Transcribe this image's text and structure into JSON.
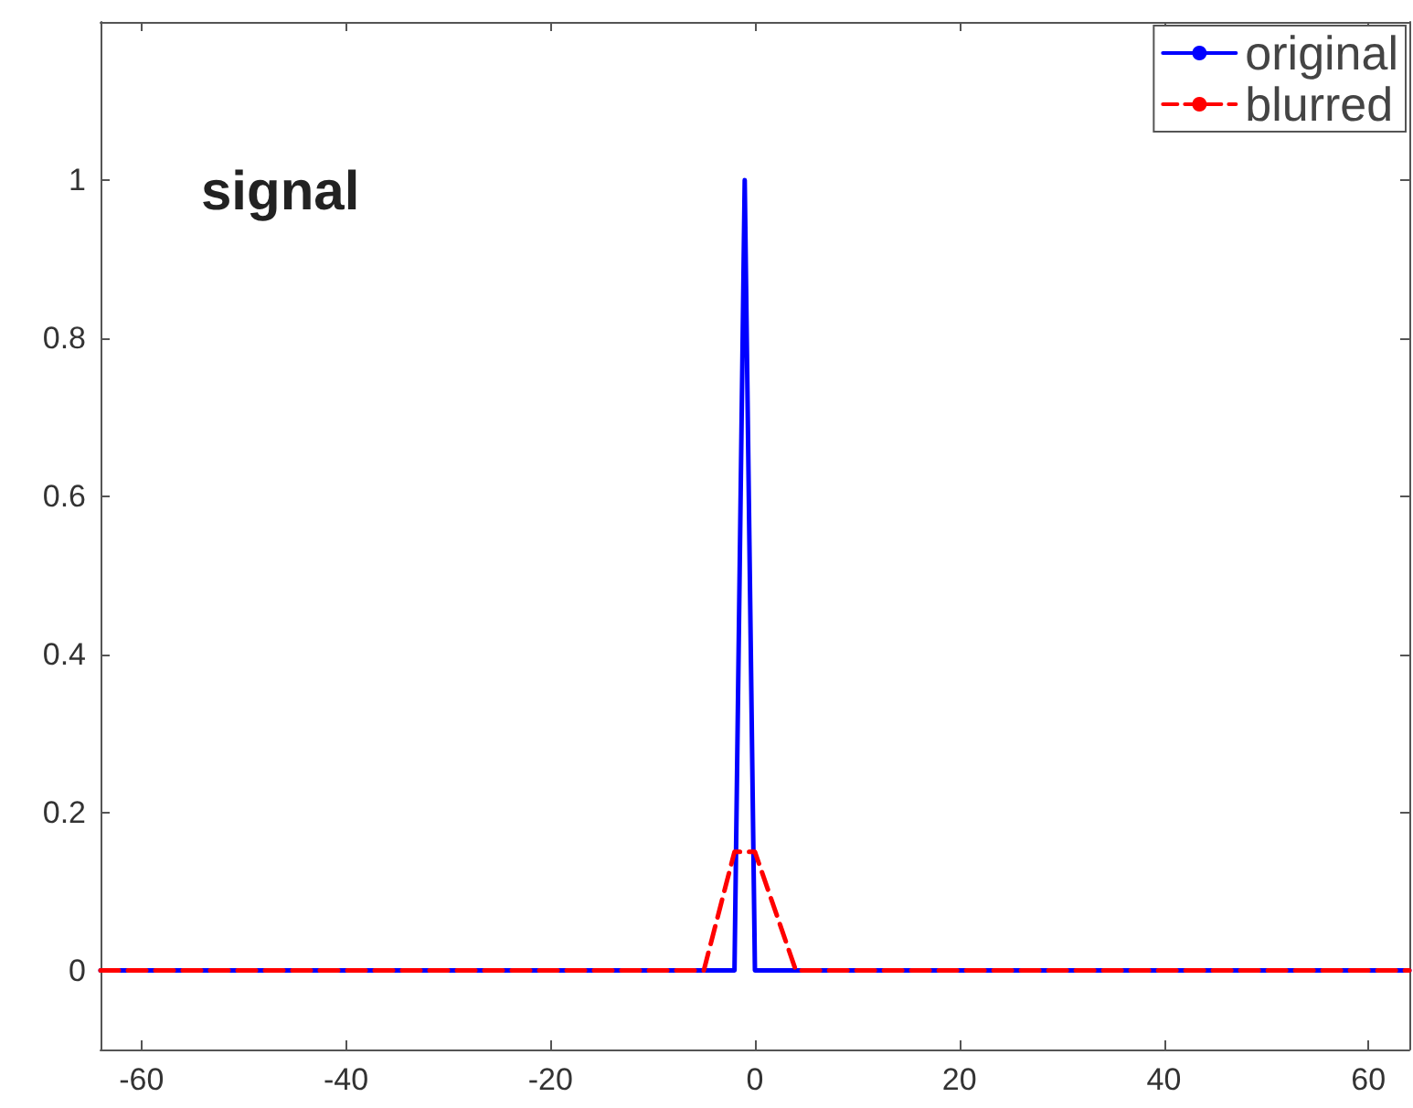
{
  "chart_data": {
    "type": "line",
    "annotations": [
      "signal"
    ],
    "series": [
      {
        "name": "original",
        "color": "#0000ff",
        "line_style": "solid",
        "x": [
          -64,
          -2,
          -1,
          0,
          64
        ],
        "values": [
          0,
          0,
          1,
          0,
          0
        ]
      },
      {
        "name": "blurred",
        "color": "#ff0000",
        "line_style": "dashed",
        "x": [
          -64,
          -5,
          -2,
          0,
          4,
          64
        ],
        "values": [
          0,
          0,
          0.15,
          0.15,
          0,
          0
        ]
      }
    ],
    "xlim": [
      -64,
      64
    ],
    "xticks": [
      -60,
      -40,
      -20,
      0,
      20,
      40,
      60
    ],
    "ylim": [
      -0.1,
      1.2
    ],
    "yticks": [
      0,
      0.2,
      0.4,
      0.6,
      0.8,
      1
    ],
    "grid": false,
    "legend": "top right",
    "marker": "none"
  }
}
